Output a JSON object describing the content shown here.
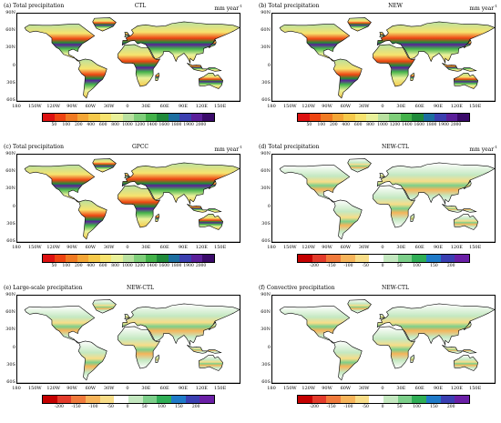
{
  "lat_labels": [
    "90N",
    "60N",
    "30N",
    "0",
    "30S",
    "60S"
  ],
  "lon_labels": [
    "180",
    "150W",
    "120W",
    "90W",
    "60W",
    "30W",
    "0",
    "30E",
    "60E",
    "90E",
    "120E",
    "150E"
  ],
  "palettes": {
    "total": [
      "#dd1111",
      "#ee4411",
      "#f07a22",
      "#f4a636",
      "#f6c94a",
      "#f7e36e",
      "#e9f19a",
      "#b9e1a0",
      "#7fcf7a",
      "#43b24a",
      "#1f8a3a",
      "#1c6ea0",
      "#3b3fb0",
      "#5a1f9a",
      "#3a0a6a"
    ],
    "diff": [
      "#c40000",
      "#e33b2b",
      "#f07a3c",
      "#f6b45a",
      "#f8dd88",
      "#ffffff",
      "#c4e8c0",
      "#7ccf8a",
      "#2fae56",
      "#1f7ac8",
      "#3a3fb2",
      "#6a1fa6"
    ]
  },
  "panels": [
    {
      "label": "(a) Total precipitation",
      "center": "CTL",
      "unit": "mm year",
      "unit_sup": "-1",
      "palette": "total",
      "cb_labels": [
        "50",
        "100",
        "200",
        "400",
        "600",
        "800",
        "1000",
        "1200",
        "1400",
        "1600",
        "1800",
        "1900",
        "2000"
      ]
    },
    {
      "label": "(b) Total precipitation",
      "center": "NEW",
      "unit": "mm year",
      "unit_sup": "-1",
      "palette": "total",
      "cb_labels": [
        "50",
        "100",
        "200",
        "400",
        "600",
        "800",
        "1000",
        "1200",
        "1400",
        "1600",
        "1800",
        "1900",
        "2000"
      ]
    },
    {
      "label": "(c) Total precipitation",
      "center": "GPCC",
      "unit": "mm year",
      "unit_sup": "-1",
      "palette": "total",
      "cb_labels": [
        "50",
        "100",
        "200",
        "400",
        "600",
        "800",
        "1000",
        "1200",
        "1400",
        "1600",
        "1800",
        "1900",
        "2000"
      ]
    },
    {
      "label": "(d) Total precipitation",
      "center": "NEW-CTL",
      "unit": "mm year",
      "unit_sup": "-1",
      "palette": "diff",
      "cb_labels": [
        "-200",
        "-150",
        "-100",
        "-50",
        "0",
        "50",
        "100",
        "150",
        "200"
      ]
    },
    {
      "label": "(e) Large-scale precipitation",
      "center": "NEW-CTL",
      "unit": "",
      "unit_sup": "",
      "palette": "diff",
      "cb_labels": [
        "-200",
        "-150",
        "-100",
        "-50",
        "0",
        "50",
        "100",
        "150",
        "200"
      ]
    },
    {
      "label": "(f) Convective precipitation",
      "center": "NEW-CTL",
      "unit": "",
      "unit_sup": "",
      "palette": "diff",
      "cb_labels": [
        "-200",
        "-150",
        "-100",
        "-50",
        "0",
        "50",
        "100",
        "150",
        "200"
      ]
    }
  ]
}
